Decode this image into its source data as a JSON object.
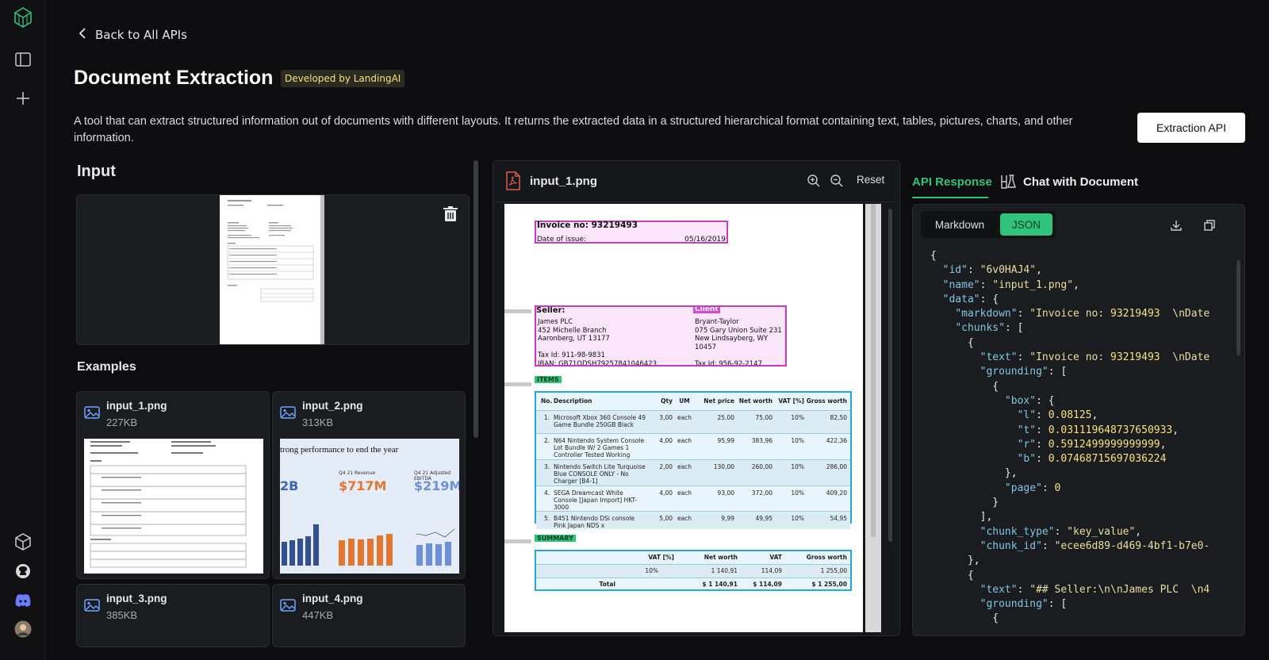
{
  "nav": {
    "back_label": "Back to All APIs"
  },
  "header": {
    "title": "Document Extraction",
    "badge": "Developed by LandingAI",
    "description": "A tool that can extract structured information out of documents with different layouts. It returns the extracted data in a structured hierarchical format containing text, tables, pictures, charts, and other information.",
    "api_button": "Extraction API"
  },
  "input": {
    "heading": "Input"
  },
  "examples": {
    "heading": "Examples",
    "items": [
      {
        "name": "input_1.png",
        "size": "227KB"
      },
      {
        "name": "input_2.png",
        "size": "313KB",
        "preview_title": "trong performance to end the year",
        "metric_1": "$717M",
        "metric_2": "$219M",
        "metric_3": "2B",
        "metric_1_label": "Q4 21 Revenue",
        "metric_2_label": "Q4 21 Adjusted EBITDA"
      },
      {
        "name": "input_3.png",
        "size": "385KB"
      },
      {
        "name": "input_4.png",
        "size": "447KB"
      }
    ]
  },
  "viewer": {
    "file_name": "input_1.png",
    "reset_label": "Reset",
    "doc": {
      "invoice_no": "Invoice no: 93219493",
      "date_label": "Date of issue:",
      "date": "05/16/2019",
      "seller_label": "Seller:",
      "client_label": "Client",
      "seller_lines": [
        "James PLC",
        "452 Michelle Branch",
        "Aaronberg, UT 13177",
        "",
        "Tax Id: 911-98-9831",
        "IBAN: GB71ODSH79257841046423"
      ],
      "client_lines": [
        "Bryant-Taylor",
        "075 Gary Union Suite 231",
        "New Lindsayberg, WY 10457",
        "",
        "Tax Id: 956-92-2147"
      ],
      "items_label": "ITEMS",
      "items_headers": [
        "No.",
        "Description",
        "Qty",
        "UM",
        "Net price",
        "Net worth",
        "VAT [%]",
        "Gross worth"
      ],
      "items": [
        [
          "1.",
          "Microsoft Xbox 360 Console 49 Game Bundle 250GB Black",
          "3,00",
          "each",
          "25,00",
          "75,00",
          "10%",
          "82,50"
        ],
        [
          "2.",
          "N64 Nintendo System Console Lot Bundle W/ 2 Games 1 Controller Tested Working",
          "4,00",
          "each",
          "95,99",
          "383,96",
          "10%",
          "422,36"
        ],
        [
          "3.",
          "Nintendo Switch Lite Turquoise Blue CONSOLE ONLY - No Charger [B4-1]",
          "2,00",
          "each",
          "130,00",
          "260,00",
          "10%",
          "286,00"
        ],
        [
          "4.",
          "SEGA Dreamcast White Console [Japan Import] HKT-3000",
          "4,00",
          "each",
          "93,00",
          "372,00",
          "10%",
          "409,20"
        ],
        [
          "5.",
          "B451 Nintendo DSi console Pink Japan NDS x",
          "5,00",
          "each",
          "9,99",
          "49,95",
          "10%",
          "54,95"
        ]
      ],
      "summary_label": "SUMMARY",
      "summary_headers": [
        "VAT [%]",
        "Net worth",
        "VAT",
        "Gross worth"
      ],
      "summary_rows": [
        [
          "",
          "10%",
          "1 140,91",
          "114,09",
          "1 255,00"
        ],
        [
          "Total",
          "",
          "$ 1 140,91",
          "$ 114,09",
          "$ 1 255,00"
        ]
      ]
    }
  },
  "response": {
    "tab_active": "API Response",
    "tab_chat": "Chat with Document",
    "format_markdown": "Markdown",
    "format_json": "JSON",
    "json_lines": [
      "{",
      "  \"id\": \"6v0HAJ4\",",
      "  \"name\": \"input_1.png\",",
      "  \"data\": {",
      "    \"markdown\": \"Invoice no: 93219493  \\nDate",
      "    \"chunks\": [",
      "      {",
      "        \"text\": \"Invoice no: 93219493  \\nDate",
      "        \"grounding\": [",
      "          {",
      "            \"box\": {",
      "              \"l\": 0.08125,",
      "              \"t\": 0.031119648737650933,",
      "              \"r\": 0.5912499999999999,",
      "              \"b\": 0.07468715697036224",
      "            },",
      "            \"page\": 0",
      "          }",
      "        ],",
      "        \"chunk_type\": \"key_value\",",
      "        \"chunk_id\": \"ecee6d89-d469-4bf1-b7e0-",
      "      },",
      "      {",
      "        \"text\": \"## Seller:\\n\\nJames PLC  \\n4",
      "        \"grounding\": [",
      "          {"
    ]
  }
}
